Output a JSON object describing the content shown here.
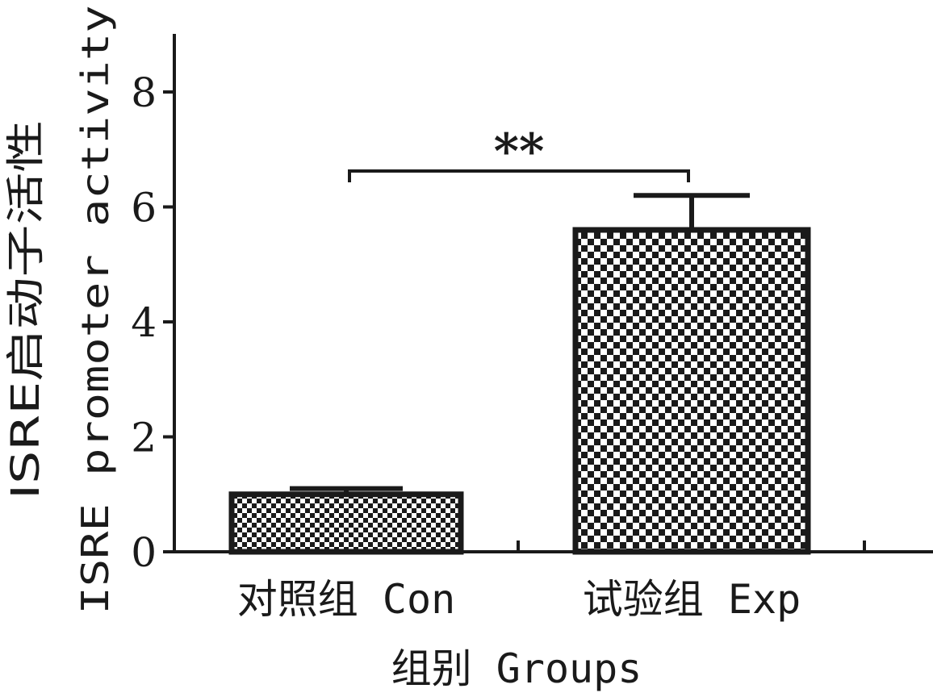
{
  "chart_data": {
    "type": "bar",
    "categories": [
      "对照组 Con",
      "试验组 Exp"
    ],
    "values": [
      1.0,
      5.6
    ],
    "error_upper": [
      1.1,
      6.2
    ],
    "ylim": [
      0,
      9
    ],
    "yticks": [
      0,
      2,
      4,
      6,
      8
    ],
    "xlabel": "组别 Groups",
    "ylabel_cn": "ISRE启动子活性",
    "ylabel_en": "ISRE promoter activity",
    "significance": {
      "label": "**",
      "between": [
        0,
        1
      ]
    },
    "bar_fill": "checkerboard",
    "bar_colors": [
      "#1a1a1a",
      "#ffffff"
    ],
    "grid": false,
    "legend": "none"
  }
}
